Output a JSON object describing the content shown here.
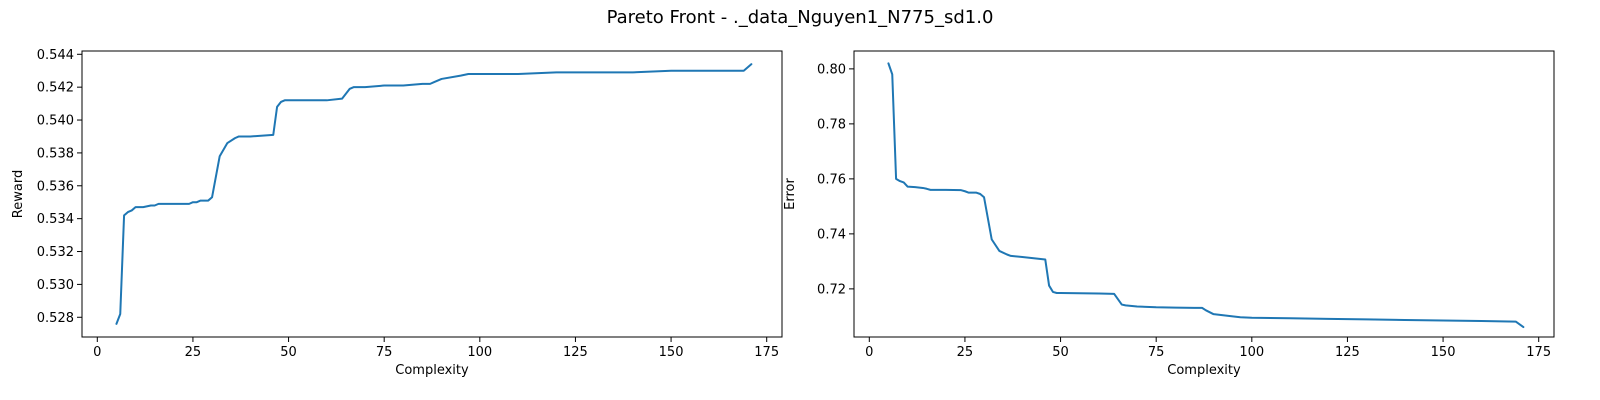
{
  "figure_title": "Pareto Front - ._data_Nguyen1_N775_sd1.0",
  "chart_data": [
    {
      "type": "line",
      "xlabel": "Complexity",
      "ylabel": "Reward",
      "xlim": [
        -4,
        179
      ],
      "ylim": [
        0.5268,
        0.5442
      ],
      "xticks": [
        0,
        25,
        50,
        75,
        100,
        125,
        150,
        175
      ],
      "yticks": [
        0.528,
        0.53,
        0.532,
        0.534,
        0.536,
        0.538,
        0.54,
        0.542,
        0.544
      ],
      "grid": false,
      "color": "#1f77b4",
      "series": [
        {
          "x": [
            5,
            6,
            7,
            8,
            9,
            10,
            12,
            14,
            15,
            16,
            18,
            20,
            22,
            24,
            25,
            26,
            27,
            28,
            29,
            30,
            32,
            34,
            36,
            37,
            40,
            46,
            47,
            48,
            49,
            50,
            55,
            60,
            64,
            66,
            67,
            70,
            75,
            80,
            85,
            87,
            88,
            90,
            95,
            97,
            100,
            110,
            120,
            130,
            140,
            150,
            160,
            169,
            171
          ],
          "y": [
            0.5276,
            0.5282,
            0.5342,
            0.5344,
            0.5345,
            0.5347,
            0.5347,
            0.5348,
            0.5348,
            0.5349,
            0.5349,
            0.5349,
            0.5349,
            0.5349,
            0.535,
            0.535,
            0.5351,
            0.5351,
            0.5351,
            0.5353,
            0.5378,
            0.5386,
            0.5389,
            0.539,
            0.539,
            0.5391,
            0.5408,
            0.5411,
            0.5412,
            0.5412,
            0.5412,
            0.5412,
            0.5413,
            0.5419,
            0.542,
            0.542,
            0.5421,
            0.5421,
            0.5422,
            0.5422,
            0.5423,
            0.5425,
            0.5427,
            0.5428,
            0.5428,
            0.5428,
            0.5429,
            0.5429,
            0.5429,
            0.543,
            0.543,
            0.543,
            0.5434
          ]
        }
      ]
    },
    {
      "type": "line",
      "xlabel": "Complexity",
      "ylabel": "Error",
      "xlim": [
        -4,
        179
      ],
      "ylim": [
        0.7025,
        0.8065
      ],
      "xticks": [
        0,
        25,
        50,
        75,
        100,
        125,
        150,
        175
      ],
      "yticks": [
        0.72,
        0.74,
        0.76,
        0.78,
        0.8
      ],
      "grid": false,
      "color": "#1f77b4",
      "series": [
        {
          "x": [
            5,
            6,
            7,
            8,
            9,
            10,
            12,
            14,
            15,
            16,
            20,
            24,
            25,
            26,
            27,
            28,
            29,
            30,
            32,
            34,
            36,
            37,
            40,
            46,
            47,
            48,
            49,
            50,
            55,
            60,
            64,
            66,
            67,
            70,
            75,
            80,
            85,
            87,
            88,
            90,
            95,
            97,
            100,
            110,
            120,
            130,
            140,
            150,
            160,
            169,
            171
          ],
          "y": [
            0.802,
            0.798,
            0.76,
            0.7592,
            0.7587,
            0.7572,
            0.757,
            0.7567,
            0.7564,
            0.756,
            0.756,
            0.7559,
            0.7555,
            0.755,
            0.755,
            0.755,
            0.7545,
            0.7533,
            0.738,
            0.7338,
            0.7325,
            0.732,
            0.7316,
            0.7307,
            0.7212,
            0.7189,
            0.7185,
            0.7185,
            0.7184,
            0.7183,
            0.7182,
            0.7143,
            0.714,
            0.7136,
            0.7133,
            0.7132,
            0.7131,
            0.7131,
            0.7122,
            0.7108,
            0.71,
            0.7097,
            0.7095,
            0.7093,
            0.7091,
            0.7089,
            0.7087,
            0.7085,
            0.7083,
            0.7081,
            0.7061
          ]
        }
      ]
    }
  ]
}
